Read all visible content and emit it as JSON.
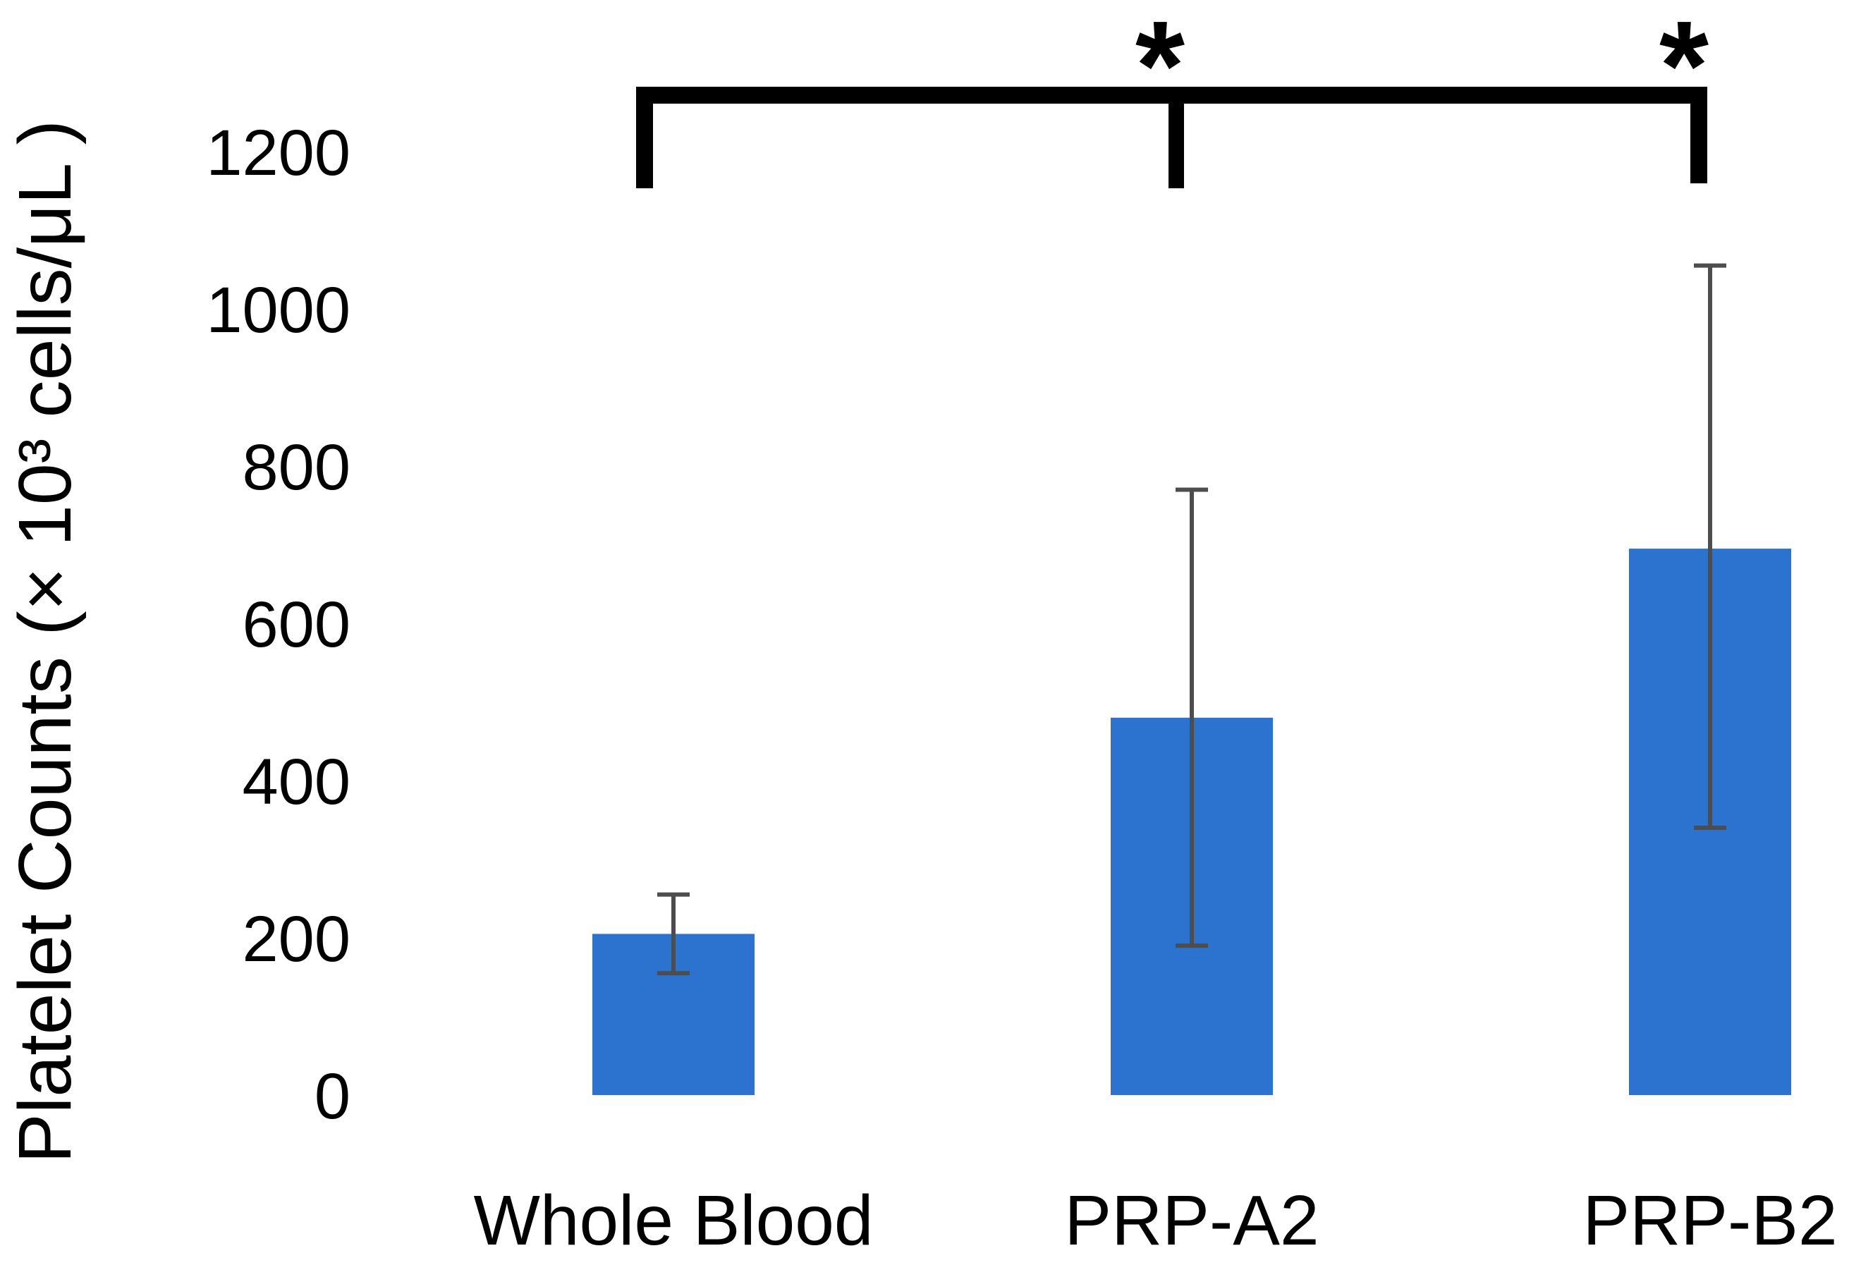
{
  "chart_data": {
    "type": "bar",
    "title": "",
    "xlabel": "",
    "ylabel": "Platelet Counts  (× 10³ cells/μL )",
    "categories": [
      "Whole Blood",
      "PRP-A2",
      "PRP-B2"
    ],
    "series": [
      {
        "name": "Platelet Counts",
        "values": [
          205,
          480,
          695
        ],
        "error_upper": [
          255,
          770,
          1055
        ],
        "error_lower": [
          155,
          190,
          340
        ]
      }
    ],
    "yticks": [
      0,
      200,
      400,
      600,
      800,
      1000,
      1200
    ],
    "ylim": [
      0,
      1300
    ],
    "grid": false,
    "legend_position": "none",
    "bar_color": "#2B73CE",
    "error_bar_color": "#4d4d4d",
    "bracket_color": "#000000",
    "significance": {
      "symbol": "*",
      "comparisons": [
        {
          "from": "Whole Blood",
          "to": "PRP-A2",
          "label": "*"
        },
        {
          "from": "Whole Blood",
          "to": "PRP-B2",
          "label": "*"
        }
      ]
    }
  }
}
